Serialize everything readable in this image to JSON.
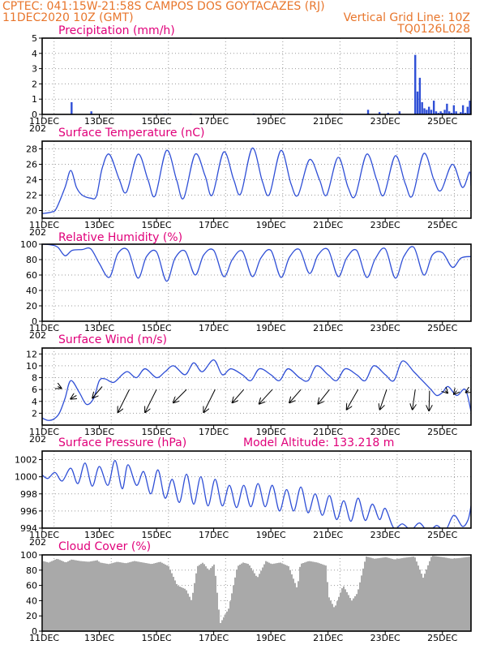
{
  "header": {
    "line1": "CPTEC:  041:15W-21:58S  CAMPOS DOS GOYTACAZES (RJ)",
    "line2_left": "11DEC2020 10Z (GMT)",
    "line2_right": "Vertical Grid Line: 10Z",
    "line3_right": "TQ0126L028"
  },
  "colors": {
    "header": "#e8762c",
    "title": "#e0007a",
    "series": "#2f4fd6",
    "cloud": "#a9a9a9",
    "wind_arrow": "#000000"
  },
  "chart_data": [
    {
      "id": "precip",
      "type": "bar",
      "title": "Precipitation (mm/h)",
      "ylim": [
        0,
        5
      ],
      "yticks": [
        0,
        1,
        2,
        3,
        4,
        5
      ],
      "grid": true,
      "x_unit": "days since 11DEC 00Z (x axis spans 11DEC-26DEC)",
      "x": [
        1.03,
        1.72,
        4.3,
        5.2,
        7.4,
        8.3,
        10.5,
        11.4,
        11.8,
        12.1,
        12.5,
        13.05,
        13.13,
        13.21,
        13.29,
        13.37,
        13.45,
        13.53,
        13.61,
        13.7,
        13.78,
        13.86,
        13.94,
        14.0,
        14.08,
        14.16,
        14.24,
        14.32,
        14.4,
        14.48,
        14.56,
        14.64,
        14.72,
        14.8,
        14.88,
        14.96
      ],
      "values": [
        0.8,
        0.2,
        0.05,
        0.05,
        0.05,
        0.05,
        0.05,
        0.3,
        0.15,
        0.1,
        0.2,
        3.9,
        1.5,
        2.4,
        0.8,
        0.4,
        0.3,
        0.5,
        0.3,
        0.9,
        0.2,
        0.1,
        0.2,
        0.1,
        0.3,
        0.7,
        0.2,
        0.1,
        0.6,
        0.2,
        0.05,
        0.15,
        0.6,
        0.1,
        0.5,
        0.9
      ]
    },
    {
      "id": "temp",
      "type": "line",
      "title": "Surface Temperature (nC)",
      "ylim": [
        19,
        29
      ],
      "yticks": [
        20,
        22,
        24,
        26,
        28
      ],
      "grid": true,
      "x_unit": "days since 11DEC 00Z",
      "x": [
        0.0,
        0.33,
        0.5,
        0.8,
        1.0,
        1.2,
        1.4,
        1.7,
        1.9,
        2.1,
        2.35,
        2.7,
        2.95,
        3.35,
        3.7,
        3.95,
        4.35,
        4.7,
        4.95,
        5.35,
        5.7,
        5.95,
        6.35,
        6.7,
        6.95,
        7.35,
        7.7,
        7.95,
        8.35,
        8.7,
        8.95,
        9.35,
        9.7,
        9.95,
        10.35,
        10.7,
        10.95,
        11.35,
        11.7,
        11.95,
        12.35,
        12.7,
        12.95,
        13.35,
        13.7,
        13.95,
        14.35,
        14.7,
        14.95,
        15.0
      ],
      "values": [
        19.6,
        19.8,
        20.3,
        23.0,
        25.2,
        23.0,
        22.0,
        21.6,
        21.9,
        25.5,
        27.3,
        24.0,
        22.4,
        27.3,
        24.0,
        21.9,
        27.8,
        24.0,
        21.6,
        27.3,
        24.5,
        22.0,
        27.6,
        24.0,
        22.2,
        28.1,
        23.8,
        22.1,
        27.8,
        23.5,
        22.0,
        26.6,
        24.0,
        22.0,
        26.9,
        23.0,
        21.9,
        27.3,
        24.0,
        22.0,
        27.1,
        23.5,
        21.9,
        27.4,
        24.0,
        22.6,
        26.0,
        23.0,
        25.0,
        23.2
      ]
    },
    {
      "id": "rh",
      "type": "line",
      "title": "Relative Humidity (%)",
      "ylim": [
        0,
        100
      ],
      "yticks": [
        0,
        20,
        40,
        60,
        80,
        100
      ],
      "grid": true,
      "x_unit": "days since 11DEC 00Z",
      "x": [
        0.0,
        0.33,
        0.55,
        0.8,
        1.05,
        1.4,
        1.7,
        2.0,
        2.35,
        2.65,
        3.0,
        3.35,
        3.65,
        4.0,
        4.35,
        4.65,
        5.0,
        5.35,
        5.65,
        6.0,
        6.35,
        6.65,
        7.0,
        7.35,
        7.65,
        8.0,
        8.35,
        8.65,
        9.0,
        9.35,
        9.65,
        10.0,
        10.35,
        10.65,
        11.0,
        11.35,
        11.65,
        12.0,
        12.35,
        12.65,
        13.0,
        13.35,
        13.65,
        14.0,
        14.35,
        14.65,
        15.0
      ],
      "values": [
        100,
        99,
        96,
        85,
        92,
        93,
        94,
        75,
        57,
        88,
        92,
        56,
        84,
        90,
        52,
        82,
        91,
        60,
        86,
        92,
        58,
        80,
        91,
        58,
        82,
        92,
        57,
        83,
        93,
        62,
        86,
        93,
        58,
        82,
        92,
        57,
        81,
        94,
        56,
        84,
        96,
        60,
        86,
        89,
        70,
        82,
        84
      ]
    },
    {
      "id": "wind",
      "type": "line",
      "title": "Surface Wind (m/s)",
      "ylim": [
        0,
        13
      ],
      "yticks": [
        2,
        4,
        6,
        8,
        10,
        12
      ],
      "grid": true,
      "x_unit": "days since 11DEC 00Z",
      "x": [
        0.0,
        0.2,
        0.4,
        0.6,
        0.8,
        1.0,
        1.3,
        1.55,
        1.8,
        2.0,
        2.2,
        2.5,
        2.8,
        3.0,
        3.3,
        3.6,
        4.0,
        4.3,
        4.6,
        5.0,
        5.3,
        5.6,
        6.0,
        6.3,
        6.6,
        7.0,
        7.3,
        7.6,
        8.0,
        8.3,
        8.6,
        9.0,
        9.3,
        9.6,
        10.0,
        10.3,
        10.6,
        11.0,
        11.3,
        11.6,
        12.0,
        12.3,
        12.6,
        13.0,
        13.2,
        13.4,
        13.6,
        13.8,
        14.0,
        14.2,
        14.5,
        14.8,
        15.0
      ],
      "values": [
        1.2,
        0.8,
        1.0,
        2.0,
        4.5,
        7.5,
        5.5,
        3.5,
        4.5,
        7.5,
        7.8,
        7.2,
        8.5,
        9.0,
        8.0,
        9.5,
        8.0,
        9.0,
        10.0,
        8.5,
        10.5,
        9.0,
        11.0,
        8.5,
        9.5,
        8.5,
        7.5,
        9.5,
        8.5,
        7.5,
        9.5,
        8.0,
        7.5,
        10.0,
        8.5,
        7.5,
        9.5,
        8.5,
        7.5,
        10.0,
        8.5,
        7.5,
        10.8,
        9.0,
        8.0,
        7.0,
        6.0,
        5.0,
        5.5,
        6.5,
        5.0,
        6.0,
        2.3
      ]
    },
    {
      "id": "wind_vectors",
      "type": "scatter",
      "x": [
        0.55,
        1.2,
        2.1,
        3.05,
        4.0,
        5.05,
        6.05,
        7.05,
        8.05,
        9.05,
        10.05,
        11.05,
        12.05,
        13.05,
        13.55,
        14.1,
        14.5,
        14.92
      ],
      "y": [
        6.5,
        5.0,
        6.5,
        6.0,
        6.0,
        6.0,
        6.0,
        6.0,
        6.0,
        6.0,
        6.0,
        6.0,
        6.0,
        6.0,
        5.8,
        5.8,
        5.8,
        5.8
      ],
      "u": [
        0.6,
        -1.0,
        -1.7,
        -2.0,
        -2.0,
        -2.3,
        -2.0,
        -2.0,
        -2.3,
        -2.0,
        -2.0,
        -2.0,
        -1.2,
        -0.5,
        -0.1,
        0.4,
        -0.5,
        -0.5
      ],
      "v": [
        -0.3,
        -0.6,
        -2.0,
        -4.0,
        -4.0,
        -2.3,
        -4.0,
        -2.3,
        -2.5,
        -2.3,
        -2.5,
        -3.5,
        -3.5,
        -3.5,
        -3.5,
        -0.4,
        -0.6,
        -0.3
      ]
    },
    {
      "id": "pressure",
      "type": "line",
      "title": "Surface Pressure (hPa)",
      "subtitle": "Model Altitude: 133.218  m",
      "ylim": [
        994,
        1003
      ],
      "yticks": [
        994,
        996,
        998,
        1000,
        1002
      ],
      "grid": true,
      "x_unit": "days since 11DEC 00Z",
      "x": [
        0.0,
        0.2,
        0.45,
        0.7,
        1.0,
        1.25,
        1.5,
        1.75,
        2.0,
        2.3,
        2.55,
        2.8,
        3.0,
        3.3,
        3.55,
        3.8,
        4.05,
        4.3,
        4.55,
        4.8,
        5.05,
        5.3,
        5.55,
        5.8,
        6.05,
        6.3,
        6.55,
        6.8,
        7.05,
        7.3,
        7.55,
        7.8,
        8.05,
        8.3,
        8.55,
        8.8,
        9.05,
        9.3,
        9.55,
        9.8,
        10.05,
        10.3,
        10.55,
        10.8,
        11.05,
        11.3,
        11.55,
        11.8,
        12.0,
        12.3,
        12.6,
        12.9,
        13.2,
        13.5,
        13.8,
        14.1,
        14.4,
        14.7,
        14.9,
        15.0
      ],
      "values": [
        1000.2,
        999.8,
        1000.5,
        999.5,
        1001.0,
        999.2,
        1001.6,
        998.9,
        1001.2,
        999.0,
        1001.9,
        998.6,
        1001.4,
        999.0,
        1000.6,
        998.0,
        1000.8,
        997.5,
        999.7,
        997.0,
        1000.3,
        996.8,
        1000.0,
        996.6,
        999.7,
        996.6,
        999.0,
        996.4,
        999.0,
        996.5,
        999.2,
        996.5,
        999.0,
        996.0,
        998.5,
        996.0,
        998.8,
        995.8,
        998.0,
        995.5,
        997.8,
        995.0,
        997.2,
        994.8,
        997.5,
        994.9,
        996.8,
        995.0,
        996.3,
        994.0,
        994.5,
        993.8,
        994.6,
        993.6,
        994.3,
        993.7,
        995.5,
        994.2,
        995.0,
        996.6
      ]
    },
    {
      "id": "cloud",
      "type": "area",
      "title": "Cloud Cover (%)",
      "ylim": [
        0,
        100
      ],
      "yticks": [
        0,
        20,
        40,
        60,
        80,
        100
      ],
      "grid": true,
      "x_unit": "days since 11DEC 00Z",
      "x": [
        0.0,
        0.2,
        0.5,
        0.8,
        1.0,
        1.3,
        1.6,
        1.9,
        2.0,
        2.3,
        2.6,
        2.9,
        3.2,
        3.5,
        3.8,
        4.1,
        4.4,
        4.7,
        5.0,
        5.2,
        5.4,
        5.6,
        5.8,
        6.0,
        6.2,
        6.5,
        6.8,
        7.0,
        7.2,
        7.5,
        7.8,
        8.0,
        8.3,
        8.6,
        8.9,
        9.0,
        9.3,
        9.6,
        9.9,
        10.0,
        10.2,
        10.5,
        10.8,
        11.0,
        11.3,
        11.6,
        12.0,
        12.3,
        12.6,
        13.0,
        13.3,
        13.6,
        14.0,
        14.3,
        14.6,
        15.0
      ],
      "values": [
        92,
        90,
        95,
        90,
        94,
        92,
        91,
        93,
        90,
        88,
        91,
        89,
        92,
        90,
        88,
        91,
        85,
        60,
        55,
        40,
        85,
        90,
        80,
        88,
        10,
        30,
        85,
        90,
        88,
        70,
        92,
        88,
        90,
        85,
        55,
        88,
        92,
        90,
        86,
        45,
        30,
        60,
        40,
        50,
        98,
        95,
        97,
        94,
        96,
        98,
        70,
        99,
        97,
        95,
        96,
        98
      ]
    }
  ],
  "x_axis": {
    "labels": [
      "11DEC",
      "13DEC",
      "15DEC",
      "17DEC",
      "19DEC",
      "21DEC",
      "23DEC",
      "25DEC"
    ],
    "label_days": [
      0,
      2,
      4,
      6,
      8,
      10,
      12,
      14
    ],
    "range_days": [
      0,
      15
    ],
    "year_fragment": "202"
  }
}
